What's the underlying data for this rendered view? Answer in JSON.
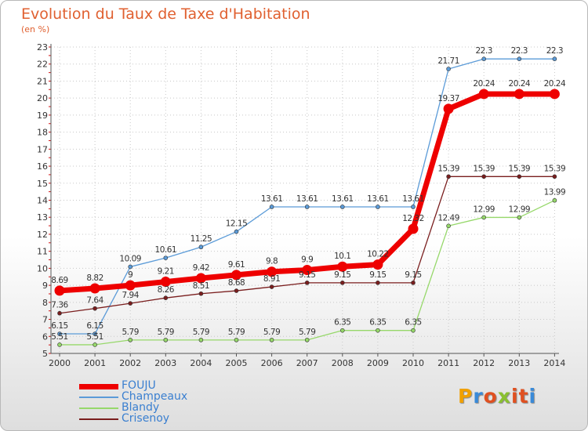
{
  "title": "Evolution du Taux de Taxe d'Habitation",
  "unit_label": "(en %)",
  "brand": {
    "letters": [
      "P",
      "r",
      "o",
      "x",
      "i",
      "t",
      "i"
    ],
    "letter_colors": [
      "#f0a000",
      "#3a8ad8",
      "#e05020",
      "#8ac030",
      "#e05020",
      "#e05020",
      "#3a8ad8"
    ]
  },
  "chart_data": {
    "type": "line",
    "x": [
      "2000",
      "2001",
      "2002",
      "2003",
      "2004",
      "2005",
      "2006",
      "2007",
      "2008",
      "2009",
      "2010",
      "2011",
      "2012",
      "2013",
      "2014"
    ],
    "ylim": [
      5,
      23
    ],
    "yticks": [
      5,
      6,
      7,
      8,
      9,
      10,
      11,
      12,
      13,
      14,
      15,
      16,
      17,
      18,
      19,
      20,
      21,
      22,
      23
    ],
    "grid": true,
    "legend_position": "bottom-left",
    "series": [
      {
        "name": "Champeaux",
        "color": "#5b9bd8",
        "width": 1.3,
        "marker": 2.5,
        "values": [
          6.15,
          6.15,
          10.09,
          10.61,
          11.25,
          12.15,
          13.61,
          13.61,
          13.61,
          13.61,
          13.61,
          21.71,
          22.3,
          22.3,
          22.3
        ],
        "labels": [
          "6.15",
          "6.15",
          "10.09",
          "10.61",
          "11.25",
          "12.15",
          "13.61",
          "13.61",
          "13.61",
          "13.61",
          "13.61",
          "21.71",
          "22.3",
          "22.3",
          "22.3"
        ]
      },
      {
        "name": "Blandy",
        "color": "#96d86a",
        "width": 1.3,
        "marker": 2.5,
        "values": [
          5.51,
          5.51,
          5.79,
          5.79,
          5.79,
          5.79,
          5.79,
          5.79,
          6.35,
          6.35,
          6.35,
          12.49,
          12.99,
          12.99,
          13.99
        ],
        "labels": [
          "5.51",
          "5.51",
          "5.79",
          "5.79",
          "5.79",
          "5.79",
          "5.79",
          "5.79",
          "6.35",
          "6.35",
          "6.35",
          "12.49",
          "12.99",
          "12.99",
          "13.99"
        ]
      },
      {
        "name": "Crisenoy",
        "color": "#7a1e1e",
        "width": 1.3,
        "marker": 2.5,
        "values": [
          7.36,
          7.64,
          7.94,
          8.26,
          8.51,
          8.68,
          8.91,
          9.15,
          9.15,
          9.15,
          9.15,
          15.39,
          15.39,
          15.39,
          15.39
        ],
        "labels": [
          "7.36",
          "7.64",
          "7.94",
          "8.26",
          "8.51",
          "8.68",
          "8.91",
          "9.15",
          "9.15",
          "9.15",
          "9.15",
          "15.39",
          "15.39",
          "15.39",
          "15.39"
        ]
      },
      {
        "name": "FOUJU",
        "color": "#ee0000",
        "width": 7,
        "marker": 6.5,
        "values": [
          8.69,
          8.82,
          9,
          9.21,
          9.42,
          9.61,
          9.8,
          9.9,
          10.1,
          10.22,
          12.32,
          19.37,
          20.24,
          20.24,
          20.24
        ],
        "labels": [
          "8.69",
          "8.82",
          "9",
          "9.21",
          "9.42",
          "9.61",
          "9.8",
          "9.9",
          "10.1",
          "10.22",
          "12.32",
          "19.37",
          "20.24",
          "20.24",
          "20.24"
        ]
      }
    ]
  },
  "legend": [
    {
      "label": "FOUJU",
      "color": "#ee0000",
      "width": 7
    },
    {
      "label": "Champeaux",
      "color": "#5b9bd8",
      "width": 1.5
    },
    {
      "label": "Blandy",
      "color": "#96d86a",
      "width": 1.5
    },
    {
      "label": "Crisenoy",
      "color": "#7a1e1e",
      "width": 1.5
    }
  ]
}
